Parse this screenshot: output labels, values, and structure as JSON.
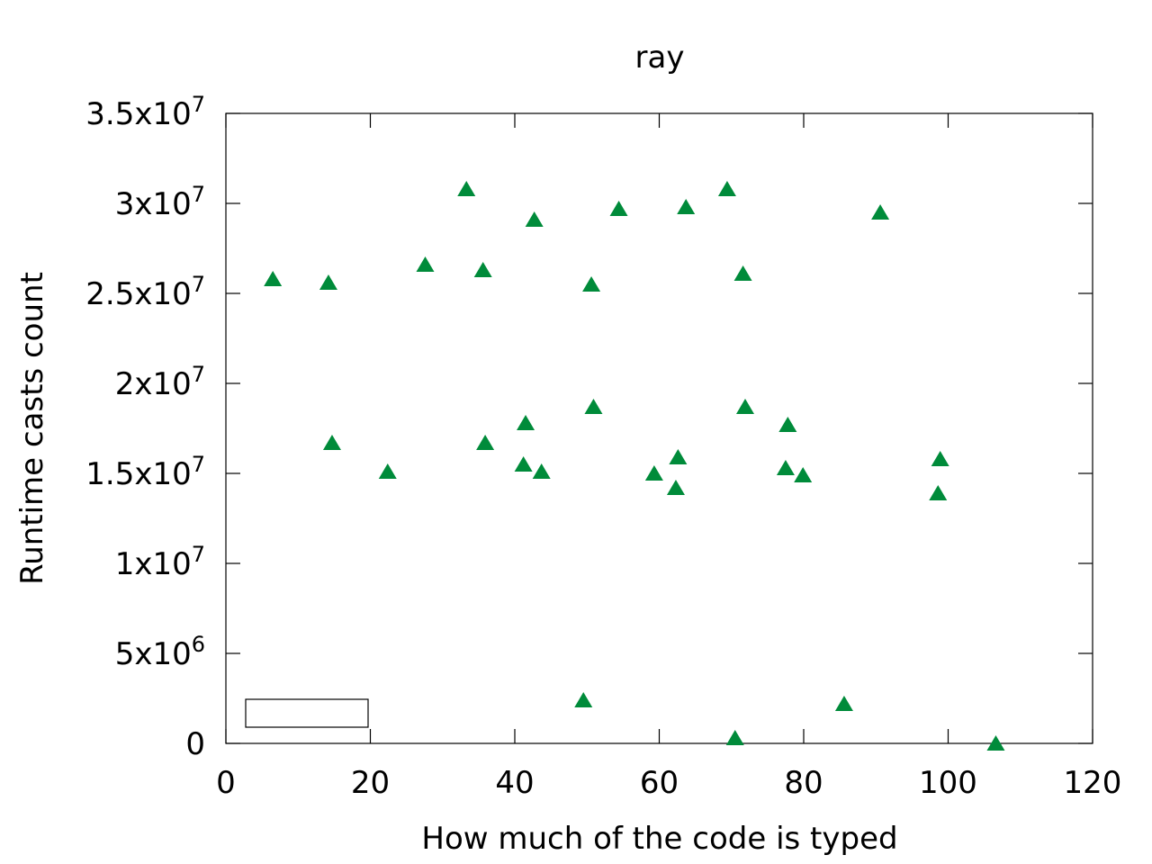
{
  "chart_data": {
    "type": "scatter",
    "title": "ray",
    "xlabel": "How much of the code is typed",
    "ylabel": "Runtime casts count",
    "xlim": [
      0,
      120
    ],
    "ylim": [
      0,
      35000000
    ],
    "x_ticks": [
      0,
      20,
      40,
      60,
      80,
      100,
      120
    ],
    "x_tick_labels": [
      "0",
      "20",
      "40",
      "60",
      "80",
      "100",
      "120"
    ],
    "y_ticks": [
      0,
      5000000,
      10000000,
      15000000,
      20000000,
      25000000,
      30000000,
      35000000
    ],
    "y_tick_labels": [
      {
        "base": "0",
        "exp": ""
      },
      {
        "base": "5x10",
        "exp": "6"
      },
      {
        "base": "1x10",
        "exp": "7"
      },
      {
        "base": "1.5x10",
        "exp": "7"
      },
      {
        "base": "2x10",
        "exp": "7"
      },
      {
        "base": "2.5x10",
        "exp": "7"
      },
      {
        "base": "3x10",
        "exp": "7"
      },
      {
        "base": "3.5x10",
        "exp": "7"
      }
    ],
    "grid": false,
    "legend": {
      "placement": "bottom-left",
      "entries": []
    },
    "marker": "triangle",
    "color": "#008b3a",
    "series": [
      {
        "points": [
          {
            "x": 6.5,
            "y": 25800000
          },
          {
            "x": 14.2,
            "y": 25600000
          },
          {
            "x": 14.7,
            "y": 16700000
          },
          {
            "x": 22.4,
            "y": 15100000
          },
          {
            "x": 27.6,
            "y": 26600000
          },
          {
            "x": 33.3,
            "y": 30800000
          },
          {
            "x": 35.6,
            "y": 26300000
          },
          {
            "x": 35.9,
            "y": 16700000
          },
          {
            "x": 41.2,
            "y": 15500000
          },
          {
            "x": 41.5,
            "y": 17800000
          },
          {
            "x": 42.7,
            "y": 29100000
          },
          {
            "x": 43.7,
            "y": 15100000
          },
          {
            "x": 49.5,
            "y": 2400000
          },
          {
            "x": 50.6,
            "y": 25500000
          },
          {
            "x": 50.9,
            "y": 18700000
          },
          {
            "x": 54.4,
            "y": 29700000
          },
          {
            "x": 59.3,
            "y": 15000000
          },
          {
            "x": 62.3,
            "y": 14200000
          },
          {
            "x": 62.6,
            "y": 15900000
          },
          {
            "x": 63.7,
            "y": 29800000
          },
          {
            "x": 69.4,
            "y": 30800000
          },
          {
            "x": 70.5,
            "y": 300000
          },
          {
            "x": 71.6,
            "y": 26100000
          },
          {
            "x": 71.9,
            "y": 18700000
          },
          {
            "x": 77.5,
            "y": 15300000
          },
          {
            "x": 77.8,
            "y": 17700000
          },
          {
            "x": 79.9,
            "y": 14900000
          },
          {
            "x": 85.6,
            "y": 2200000
          },
          {
            "x": 90.6,
            "y": 29500000
          },
          {
            "x": 98.6,
            "y": 13900000
          },
          {
            "x": 98.9,
            "y": 15800000
          },
          {
            "x": 106.6,
            "y": 0
          }
        ]
      }
    ]
  }
}
